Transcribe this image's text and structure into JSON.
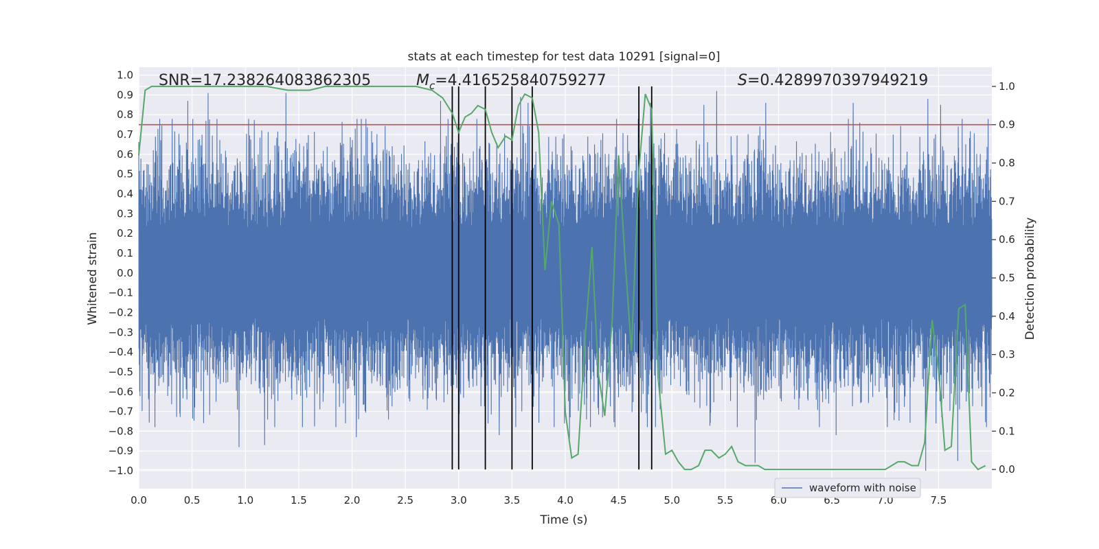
{
  "chart_data": {
    "type": "line",
    "title": "stats at each timestep for test data 10291 [signal=0]",
    "xlabel": "Time (s)",
    "ylabel_left": "Whitened strain",
    "ylabel_right": "Detection probability",
    "xlim": [
      0.0,
      8.0
    ],
    "ylim_left": [
      -1.09,
      1.04
    ],
    "ylim_right": [
      -0.05,
      1.05
    ],
    "x_ticks": [
      "0.0",
      "0.5",
      "1.0",
      "1.5",
      "2.0",
      "2.5",
      "3.0",
      "3.5",
      "4.0",
      "4.5",
      "5.0",
      "5.5",
      "6.0",
      "6.5",
      "7.0",
      "7.5"
    ],
    "y_ticks_left": [
      "−1.0",
      "−0.9",
      "−0.8",
      "−0.7",
      "−0.6",
      "−0.5",
      "−0.4",
      "−0.3",
      "−0.2",
      "−0.1",
      "0.0",
      "0.1",
      "0.2",
      "0.3",
      "0.4",
      "0.5",
      "0.6",
      "0.7",
      "0.8",
      "0.9",
      "1.0"
    ],
    "y_ticks_right": [
      "0.0",
      "0.1",
      "0.2",
      "0.3",
      "0.4",
      "0.5",
      "0.6",
      "0.7",
      "0.8",
      "0.9",
      "1.0"
    ],
    "grid": true,
    "annotations": {
      "snr": "SNR=17.238264083862305",
      "mc_symbol": "M",
      "mc_sub": "c",
      "mc_value": "=4.416525840759277",
      "s_symbol": "S",
      "s_value": "=0.4289970397949219"
    },
    "threshold_line": {
      "axis": "right",
      "y": 0.9,
      "color": "#c44e52"
    },
    "vertical_lines_x": [
      2.94,
      3.0,
      3.25,
      3.5,
      3.69,
      4.69,
      4.81
    ],
    "series": [
      {
        "name": "waveform with noise",
        "axis": "left",
        "color": "#4c72b0",
        "x_range": [
          0.0,
          8.0
        ],
        "amplitude_envelope": {
          "typical": 0.5,
          "max": 0.95
        },
        "peaks": [
          {
            "x": 0.46,
            "y": 0.87
          },
          {
            "x": 0.65,
            "y": 0.91
          },
          {
            "x": 1.38,
            "y": 0.91
          },
          {
            "x": 2.83,
            "y": 0.87
          },
          {
            "x": 3.58,
            "y": 0.89
          },
          {
            "x": 3.65,
            "y": 0.86
          },
          {
            "x": 4.53,
            "y": 0.55
          },
          {
            "x": 4.8,
            "y": 0.86
          },
          {
            "x": 5.3,
            "y": 0.85
          },
          {
            "x": 5.42,
            "y": 0.92
          },
          {
            "x": 5.88,
            "y": 0.86
          },
          {
            "x": 6.7,
            "y": 0.86
          },
          {
            "x": 7.4,
            "y": 0.88
          },
          {
            "x": 7.52,
            "y": 0.85
          },
          {
            "x": 0.94,
            "y": -0.88
          },
          {
            "x": 1.18,
            "y": -0.87
          },
          {
            "x": 3.38,
            "y": -0.82
          },
          {
            "x": 4.04,
            "y": -0.84
          },
          {
            "x": 5.78,
            "y": -0.96
          },
          {
            "x": 7.38,
            "y": -1.0
          },
          {
            "x": 7.68,
            "y": -0.95
          },
          {
            "x": 4.35,
            "y": -0.73
          },
          {
            "x": 2.04,
            "y": -0.83
          },
          {
            "x": 6.54,
            "y": -0.82
          }
        ]
      },
      {
        "name": "",
        "axis": "right",
        "color": "#55a868",
        "x": [
          0.0,
          0.06,
          0.12,
          0.3,
          0.6,
          0.9,
          1.2,
          1.4,
          1.5,
          1.6,
          1.75,
          2.0,
          2.3,
          2.6,
          2.75,
          2.85,
          2.94,
          3.0,
          3.06,
          3.12,
          3.18,
          3.25,
          3.31,
          3.37,
          3.44,
          3.5,
          3.56,
          3.62,
          3.69,
          3.75,
          3.81,
          3.87,
          3.94,
          4.0,
          4.06,
          4.12,
          4.19,
          4.25,
          4.31,
          4.37,
          4.44,
          4.5,
          4.56,
          4.62,
          4.69,
          4.75,
          4.81,
          4.87,
          4.94,
          5.0,
          5.06,
          5.12,
          5.18,
          5.25,
          5.31,
          5.37,
          5.44,
          5.5,
          5.56,
          5.62,
          5.69,
          5.75,
          5.81,
          5.87,
          6.0,
          6.2,
          6.5,
          6.8,
          7.0,
          7.06,
          7.12,
          7.18,
          7.25,
          7.31,
          7.37,
          7.44,
          7.5,
          7.56,
          7.62,
          7.69,
          7.75,
          7.81,
          7.87,
          7.94
        ],
        "y": [
          0.82,
          0.99,
          1.0,
          1.0,
          1.0,
          1.0,
          1.0,
          0.99,
          0.99,
          0.99,
          1.0,
          1.0,
          1.0,
          1.0,
          0.99,
          0.97,
          0.93,
          0.88,
          0.92,
          0.93,
          0.95,
          0.94,
          0.88,
          0.84,
          0.87,
          0.86,
          0.95,
          0.98,
          0.97,
          0.88,
          0.52,
          0.7,
          0.64,
          0.15,
          0.03,
          0.04,
          0.36,
          0.58,
          0.25,
          0.14,
          0.39,
          0.82,
          0.55,
          0.31,
          0.78,
          0.98,
          0.94,
          0.24,
          0.04,
          0.05,
          0.02,
          0.0,
          0.0,
          0.01,
          0.05,
          0.05,
          0.03,
          0.04,
          0.06,
          0.02,
          0.01,
          0.01,
          0.01,
          0.0,
          0.0,
          0.0,
          0.0,
          0.0,
          0.0,
          0.01,
          0.02,
          0.02,
          0.01,
          0.01,
          0.07,
          0.39,
          0.26,
          0.05,
          0.06,
          0.42,
          0.43,
          0.02,
          0.0,
          0.01
        ]
      }
    ]
  }
}
